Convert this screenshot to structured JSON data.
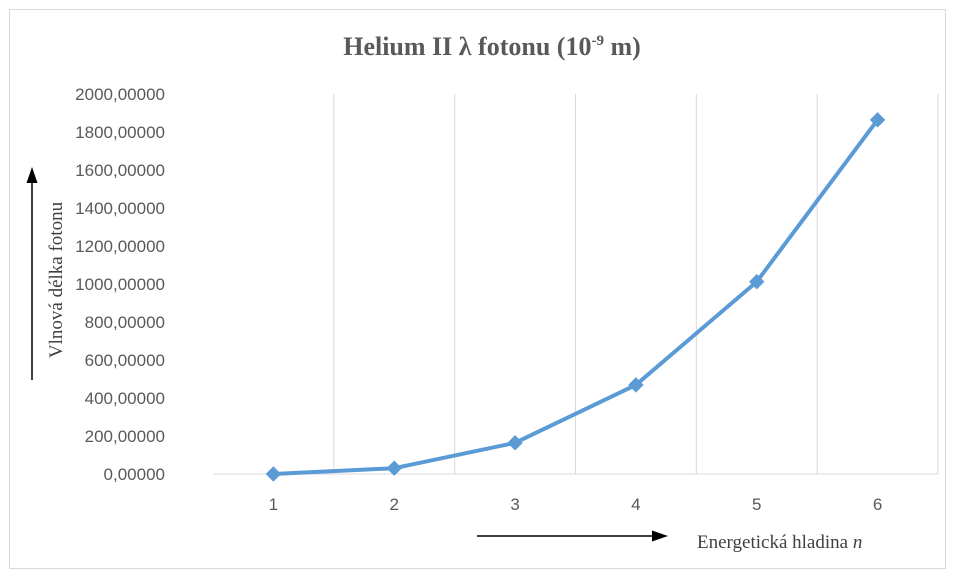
{
  "chart_data": {
    "type": "line",
    "title": {
      "main": "Helium II λ fotonu (10",
      "superscript": "-9",
      "suffix": " m)"
    },
    "xlabel": {
      "text": "Energetická hladina ",
      "variable": "n"
    },
    "ylabel": "Vlnová délka fotonu",
    "categories": [
      "1",
      "2",
      "3",
      "4",
      "5",
      "6"
    ],
    "yticks": [
      "0,00000",
      "200,00000",
      "400,00000",
      "600,00000",
      "800,00000",
      "1000,00000",
      "1200,00000",
      "1400,00000",
      "1600,00000",
      "1800,00000",
      "2000,00000"
    ],
    "ylim": [
      0,
      2000
    ],
    "grid": "vertical",
    "series": [
      {
        "values": [
          0,
          30.4,
          164,
          469,
          1012,
          1864
        ],
        "color": "#5b9bd5",
        "marker": "diamond"
      }
    ]
  }
}
